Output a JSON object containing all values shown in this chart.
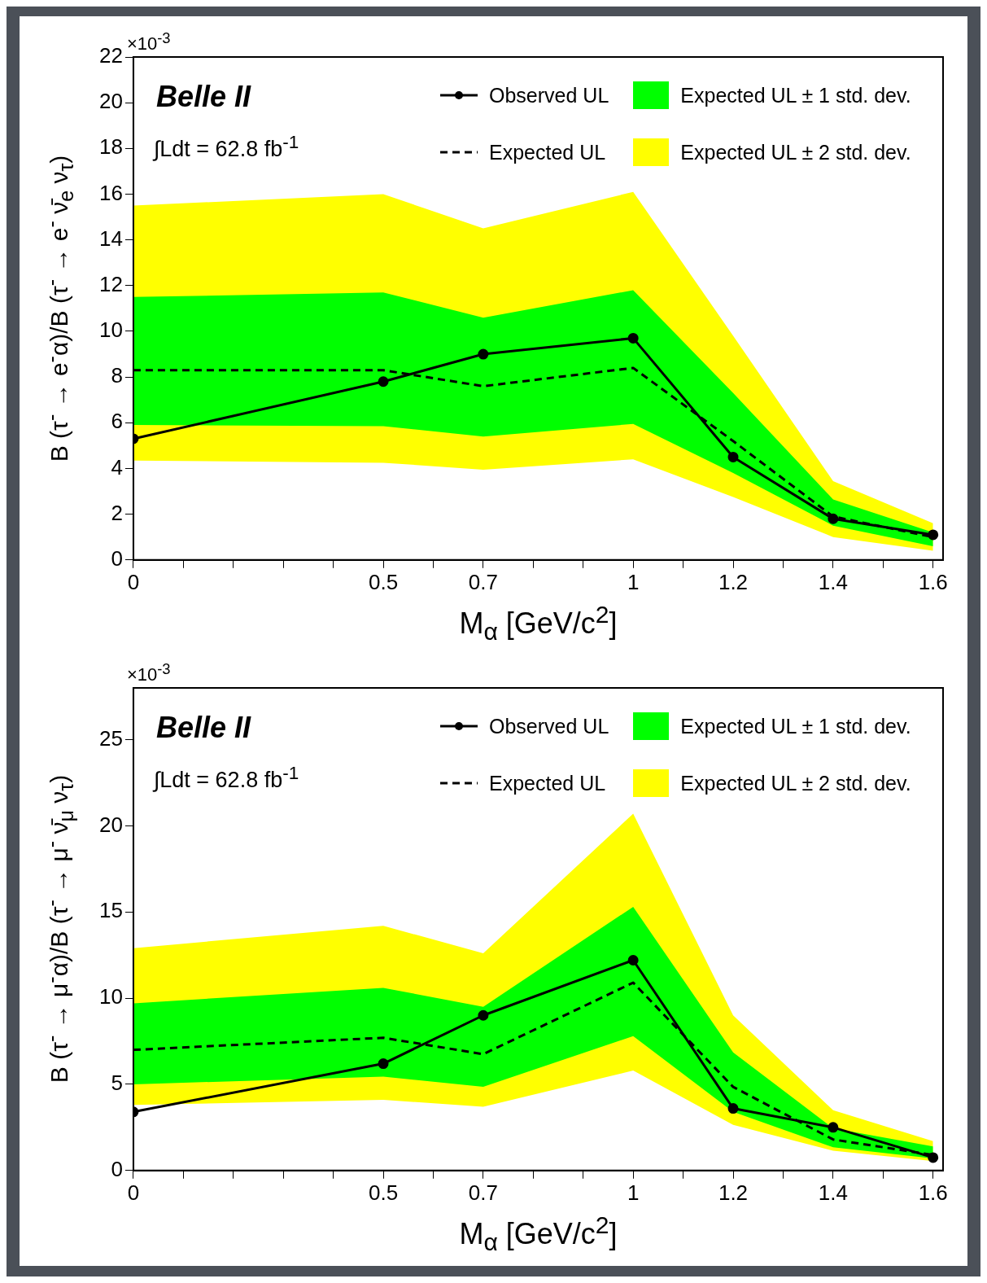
{
  "chart_data": [
    {
      "type": "line",
      "xlabel": "M$_{α}$ [GeV/c$^{2}$]",
      "ylabel": "B (τ$^{-}$ → e$^{-}$α)/B (τ$^{-}$ → e$^{-}$ ν̄$_{e}$ ν$_{τ}$)",
      "annotations": [
        "Belle II",
        "∫Ldt = 62.8 fb$^{-1}$",
        "×10$^{-3}$"
      ],
      "legend": "top right",
      "grid": false,
      "x": [
        0,
        0.5,
        0.7,
        1,
        1.2,
        1.4,
        1.6
      ],
      "xlim": [
        0,
        1.62
      ],
      "xticks": [
        0,
        {
          "value": 0.1,
          "label": null
        },
        {
          "value": 0.2,
          "label": null
        },
        {
          "value": 0.3,
          "label": null
        },
        {
          "value": 0.4,
          "label": null
        },
        0.5,
        {
          "value": 0.6,
          "label": null
        },
        0.7,
        {
          "value": 0.8,
          "label": null
        },
        {
          "value": 0.9,
          "label": null
        },
        1,
        {
          "value": 1.1,
          "label": null
        },
        1.2,
        {
          "value": 1.3,
          "label": null
        },
        1.4,
        {
          "value": 1.5,
          "label": null
        },
        1.6
      ],
      "ylim": [
        0,
        22
      ],
      "yticks": [
        0,
        2,
        4,
        6,
        8,
        10,
        12,
        14,
        16,
        18,
        20,
        22
      ],
      "series": [
        {
          "name": "Observed UL",
          "type": "line",
          "color": "#000000",
          "marker": "circle",
          "line_style": "solid",
          "values": [
            5.3,
            7.8,
            9.0,
            9.7,
            4.5,
            1.8,
            1.1
          ]
        },
        {
          "name": "Expected UL",
          "type": "line",
          "color": "#000000",
          "marker": "none",
          "line_style": "dashed",
          "values": [
            8.3,
            8.3,
            7.6,
            8.4,
            5.2,
            1.9,
            1.0
          ]
        },
        {
          "name": "Expected UL ± 1 std. dev.",
          "type": "area",
          "color": "#00ff00",
          "values": [
            null,
            null,
            null,
            null,
            null,
            null,
            null
          ],
          "upper": [
            11.5,
            11.7,
            10.6,
            11.8,
            7.3,
            2.65,
            1.2
          ],
          "lower": [
            5.9,
            5.85,
            5.4,
            5.95,
            3.8,
            1.5,
            0.6
          ]
        },
        {
          "name": "Expected UL ± 2 std. dev.",
          "type": "area",
          "color": "#ffff00",
          "values": [
            null,
            null,
            null,
            null,
            null,
            null,
            null
          ],
          "upper": [
            15.5,
            16.0,
            14.5,
            16.1,
            9.8,
            3.45,
            1.6
          ],
          "lower": [
            4.35,
            4.25,
            3.95,
            4.4,
            2.75,
            1.0,
            0.4
          ]
        }
      ]
    },
    {
      "type": "line",
      "xlabel": "M$_{α}$ [GeV/c$^{2}$]",
      "ylabel": "B (τ$^{-}$ → μ$^{-}$α)/B (τ$^{-}$ → μ$^{-}$ ν̄$_{μ}$ ν$_{τ}$)",
      "annotations": [
        "Belle II",
        "∫Ldt = 62.8 fb$^{-1}$",
        "×10$^{-3}$"
      ],
      "legend": "top right",
      "grid": false,
      "x": [
        0,
        0.5,
        0.7,
        1,
        1.2,
        1.4,
        1.6
      ],
      "xlim": [
        0,
        1.62
      ],
      "xticks": [
        0,
        {
          "value": 0.1,
          "label": null
        },
        {
          "value": 0.2,
          "label": null
        },
        {
          "value": 0.3,
          "label": null
        },
        {
          "value": 0.4,
          "label": null
        },
        0.5,
        {
          "value": 0.6,
          "label": null
        },
        0.7,
        {
          "value": 0.8,
          "label": null
        },
        {
          "value": 0.9,
          "label": null
        },
        1,
        {
          "value": 1.1,
          "label": null
        },
        1.2,
        {
          "value": 1.3,
          "label": null
        },
        1.4,
        {
          "value": 1.5,
          "label": null
        },
        1.6
      ],
      "ylim": [
        0,
        28
      ],
      "yticks": [
        0,
        5,
        10,
        15,
        20,
        25
      ],
      "series": [
        {
          "name": "Observed UL",
          "type": "line",
          "color": "#000000",
          "marker": "circle",
          "line_style": "solid",
          "values": [
            3.4,
            6.2,
            9.0,
            12.2,
            3.6,
            2.5,
            0.75
          ]
        },
        {
          "name": "Expected UL",
          "type": "line",
          "color": "#000000",
          "marker": "none",
          "line_style": "dashed",
          "values": [
            7.0,
            7.7,
            6.75,
            10.9,
            4.85,
            1.8,
            0.9
          ]
        },
        {
          "name": "Expected UL ± 1 std. dev.",
          "type": "area",
          "color": "#00ff00",
          "values": [
            null,
            null,
            null,
            null,
            null,
            null,
            null
          ],
          "upper": [
            9.7,
            10.6,
            9.5,
            15.3,
            6.85,
            2.45,
            1.4
          ],
          "lower": [
            5.0,
            5.45,
            4.85,
            7.8,
            3.4,
            1.35,
            0.7
          ]
        },
        {
          "name": "Expected UL ± 2 std. dev.",
          "type": "area",
          "color": "#ffff00",
          "values": [
            null,
            null,
            null,
            null,
            null,
            null,
            null
          ],
          "upper": [
            12.9,
            14.2,
            12.6,
            20.7,
            9.0,
            3.5,
            1.7
          ],
          "lower": [
            3.8,
            4.1,
            3.7,
            5.8,
            2.65,
            1.15,
            0.55
          ]
        }
      ]
    }
  ]
}
